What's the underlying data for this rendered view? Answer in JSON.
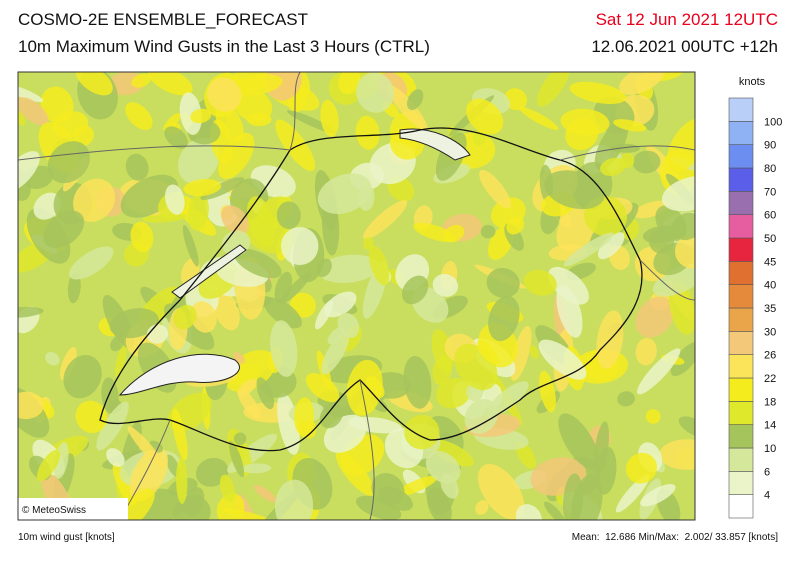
{
  "header": {
    "title": "COSMO-2E ENSEMBLE_FORECAST",
    "subtitle": "10m Maximum Wind Gusts in the Last 3 Hours (CTRL)",
    "valid_time": "Sat 12 Jun 2021 12UTC",
    "run": "12.06.2021 00UTC +12h"
  },
  "legend": {
    "unit": "knots",
    "labels": [
      4,
      6,
      10,
      14,
      18,
      22,
      26,
      30,
      35,
      40,
      45,
      50,
      60,
      70,
      80,
      90,
      100
    ],
    "colors": [
      "#ffffff",
      "#eaf4c8",
      "#d5e79a",
      "#a6c45c",
      "#dfe82a",
      "#f5ec1e",
      "#fbe35a",
      "#f3c878",
      "#eaa44a",
      "#e58a3a",
      "#e07030",
      "#e8253f",
      "#e75ea0",
      "#9a6fb0",
      "#5a5ee8",
      "#6b8ef0",
      "#8fb2f5",
      "#b9cff8"
    ]
  },
  "map": {
    "copyright": "© MeteoSwiss"
  },
  "footer": {
    "left": "10m wind gust [knots]",
    "right": "Mean:  12.686 Min/Max:  2.002/ 33.857 [knots]"
  }
}
